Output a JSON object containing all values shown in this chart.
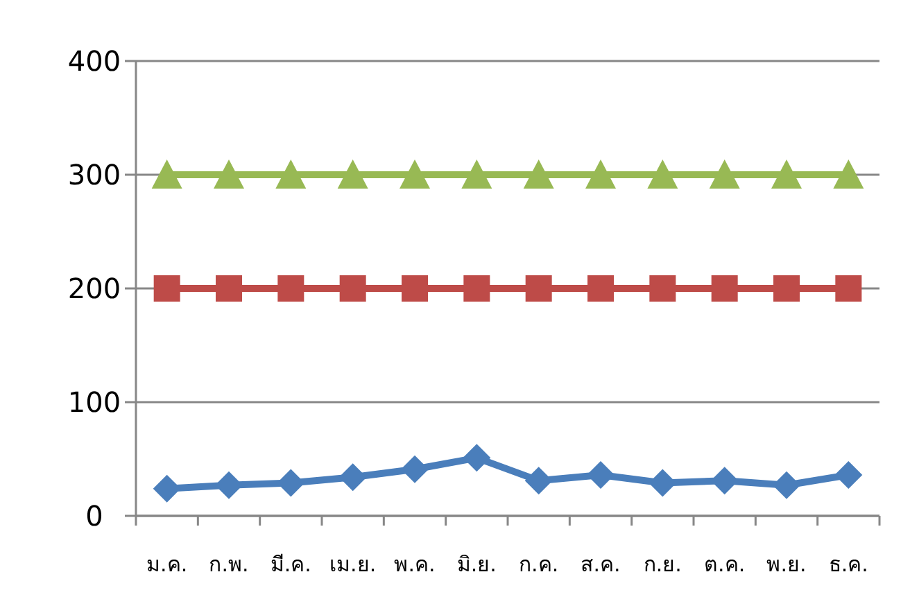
{
  "chart_data": {
    "type": "line",
    "categories": [
      "ม.ค.",
      "ก.พ.",
      "มี.ค.",
      "เม.ย.",
      "พ.ค.",
      "มิ.ย.",
      "ก.ค.",
      "ส.ค.",
      "ก.ย.",
      "ต.ค.",
      "พ.ย.",
      "ธ.ค."
    ],
    "series": [
      {
        "color": "#4a7ebb",
        "marker": "diamond",
        "values": [
          24,
          27,
          29,
          34,
          41,
          51,
          31,
          36,
          29,
          31,
          27,
          36
        ]
      },
      {
        "color": "#be4b48",
        "marker": "square",
        "values": [
          200,
          200,
          200,
          200,
          200,
          200,
          200,
          200,
          200,
          200,
          200,
          200
        ]
      },
      {
        "color": "#98b954",
        "marker": "triangle",
        "values": [
          300,
          300,
          300,
          300,
          300,
          300,
          300,
          300,
          300,
          300,
          300,
          300
        ]
      }
    ],
    "ylim": [
      0,
      400
    ],
    "yticks": [
      0,
      100,
      200,
      300,
      400
    ],
    "grid": "y"
  }
}
